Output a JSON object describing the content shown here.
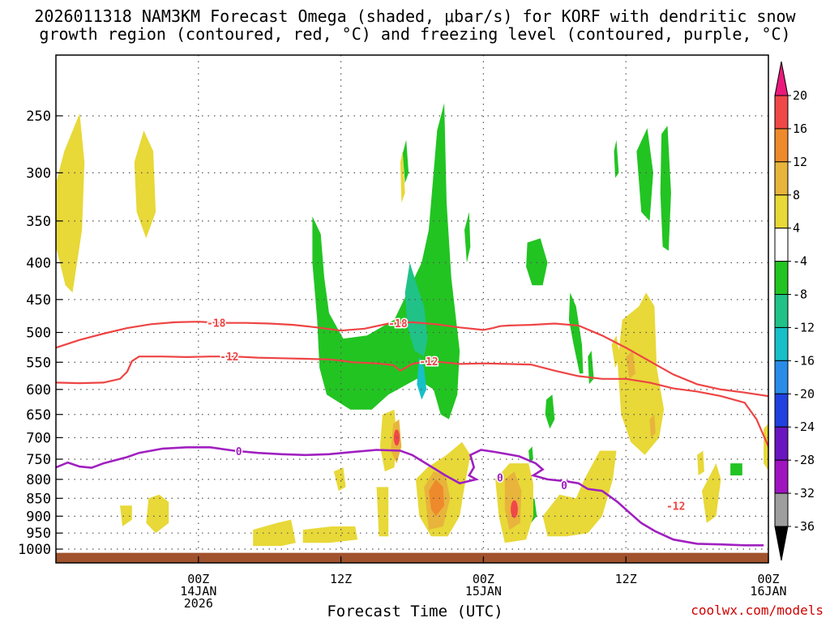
{
  "chart_data": {
    "type": "time-height cross section",
    "title": "2026011318 NAM3KM Forecast Omega (shaded, μbar/s) for KORF with dendritic snow",
    "title_line2": "growth region (contoured, red, °C) and freezing level (contoured, purple, °C)",
    "xlabel": "Forecast Time (UTC)",
    "ylabel": "",
    "credit": "coolwx.com/models",
    "y_axis": {
      "scale": "log-pressure",
      "units": "mb",
      "ticks": [
        250,
        300,
        350,
        400,
        450,
        500,
        550,
        600,
        650,
        700,
        750,
        800,
        850,
        900,
        950,
        1000
      ],
      "range": [
        1030,
        200
      ]
    },
    "x_axis": {
      "range_hours": [
        -6,
        54
      ],
      "ticks": [
        {
          "hour": 6,
          "lines": [
            "00Z",
            "14JAN",
            "2026"
          ]
        },
        {
          "hour": 18,
          "lines": [
            "12Z"
          ]
        },
        {
          "hour": 30,
          "lines": [
            "00Z",
            "15JAN"
          ]
        },
        {
          "hour": 42,
          "lines": [
            "12Z"
          ]
        },
        {
          "hour": 54,
          "lines": [
            "00Z",
            "16JAN"
          ]
        }
      ]
    },
    "colorbar": {
      "levels": [
        "20",
        "16",
        "12",
        "8",
        "4",
        "-4",
        "-8",
        "-12",
        "-16",
        "-20",
        "-24",
        "-28",
        "-32",
        "-36"
      ],
      "colors": [
        "#ea1a7b",
        "#f04848",
        "#ee8a2c",
        "#e8b43c",
        "#e8d838",
        "#ffffff",
        "#22c422",
        "#20c288",
        "#17c0c8",
        "#2a8ce8",
        "#2040e0",
        "#6a16c0",
        "#a014c0",
        "#9e9e9e",
        "#000000"
      ]
    },
    "contours": [
      {
        "name": "-18",
        "color": "#ee4444",
        "label_positions_hr": [
          7.5,
          22.8
        ]
      },
      {
        "name": "-12",
        "color": "#ee4444",
        "label_positions_hr": [
          8.6,
          25.4,
          46.2
        ]
      },
      {
        "name": "0",
        "color": "#a020c0",
        "label_positions_hr": [
          9.4,
          36.8,
          31.4
        ]
      }
    ],
    "ground": {
      "color": "#a0522d"
    }
  }
}
